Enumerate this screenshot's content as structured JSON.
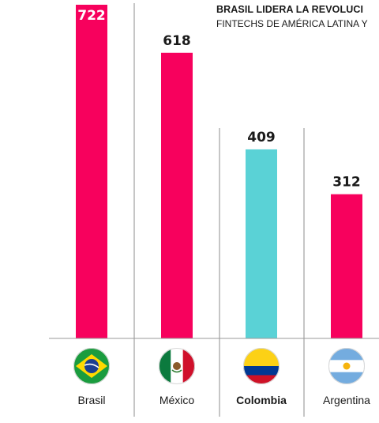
{
  "chart_data": {
    "type": "bar",
    "title": "BRASIL LIDERA LA REVOLUCI",
    "subtitle": "FINTECHS DE AMÉRICA LATINA Y",
    "categories": [
      "Brasil",
      "México",
      "Colombia",
      "Argentina"
    ],
    "values": [
      722,
      618,
      409,
      312
    ],
    "highlight": "Colombia",
    "colors": {
      "default": "#f7015d",
      "highlight": "#5ad2d6"
    },
    "ylim": [
      0,
      722
    ],
    "grid": false,
    "legend": "none",
    "flags": [
      "brazil-flag-icon",
      "mexico-flag-icon",
      "colombia-flag-icon",
      "argentina-flag-icon"
    ]
  }
}
